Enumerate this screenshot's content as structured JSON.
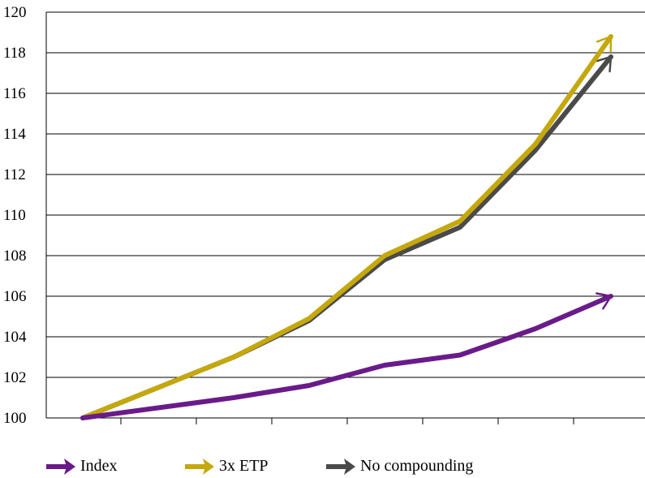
{
  "chart_data": {
    "type": "line",
    "x": [
      0,
      1,
      2,
      3,
      4,
      5,
      6,
      7
    ],
    "ylim": [
      100,
      120
    ],
    "yticks": [
      "100",
      "102",
      "104",
      "106",
      "108",
      "110",
      "112",
      "114",
      "116",
      "118",
      "120"
    ],
    "grid": true,
    "legend_position": "bottom",
    "series": [
      {
        "name": "No compounding",
        "color": "#4a4a4a",
        "values": [
          100,
          101.5,
          103.0,
          104.8,
          107.8,
          109.4,
          113.2,
          117.8
        ]
      },
      {
        "name": "3x ETP",
        "color": "#c4a80c",
        "values": [
          100,
          101.5,
          103.0,
          104.9,
          108.0,
          109.7,
          113.5,
          118.8
        ]
      },
      {
        "name": "Index",
        "color": "#6a1b8a",
        "values": [
          100,
          100.5,
          101.0,
          101.6,
          102.6,
          103.1,
          104.4,
          106.0
        ]
      }
    ]
  },
  "legend": {
    "items": [
      {
        "label": "Index",
        "color": "#6a1b8a"
      },
      {
        "label": "3x ETP",
        "color": "#c4a80c"
      },
      {
        "label": "No compounding",
        "color": "#4a4a4a"
      }
    ]
  }
}
